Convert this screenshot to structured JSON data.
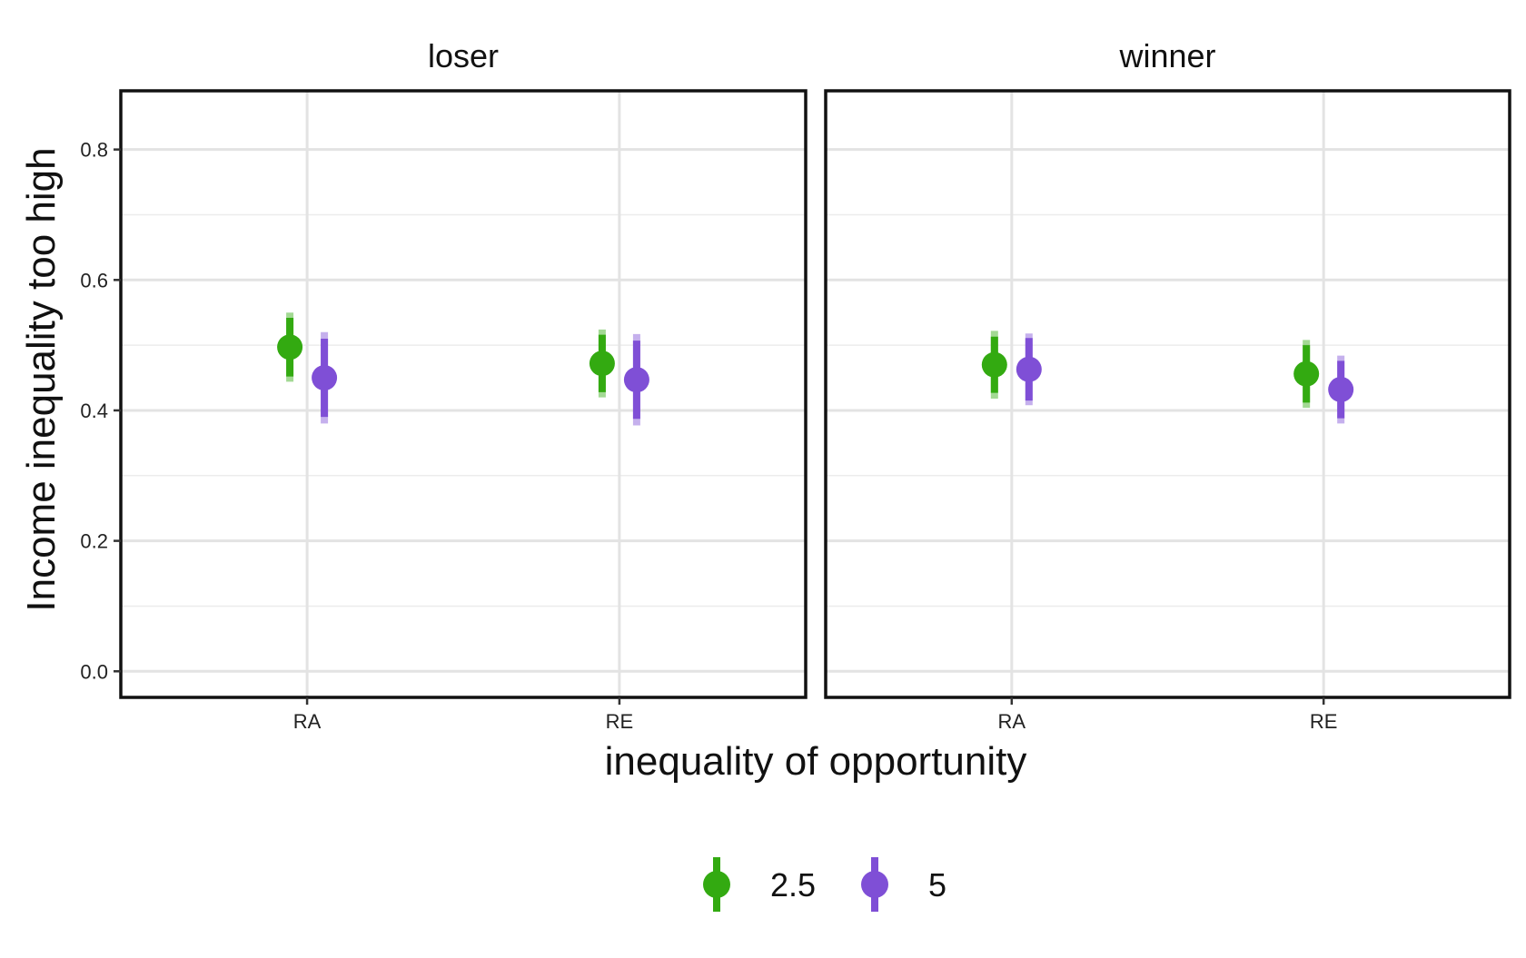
{
  "chart_data": {
    "type": "scatter",
    "subtype": "pointrange",
    "xlabel": "inequality of opportunity",
    "ylabel": "Income inequality too high",
    "ylim": [
      -0.04,
      0.89
    ],
    "yticks": [
      "0.0",
      "0.2",
      "0.4",
      "0.6",
      "0.8"
    ],
    "ytick_values": [
      0.0,
      0.2,
      0.4,
      0.6,
      0.8
    ],
    "categories": [
      "RA",
      "RE"
    ],
    "grid": true,
    "legend_position": "bottom",
    "colors": {
      "2.5": "#33aa11",
      "5": "#7f4fd6"
    },
    "series": [
      {
        "name": "2.5",
        "color": "#33aa11"
      },
      {
        "name": "5",
        "color": "#7f4fd6"
      }
    ],
    "panels": [
      {
        "title": "loser",
        "points": [
          {
            "category": "RA",
            "series": "2.5",
            "y": 0.497,
            "inner": [
              0.452,
              0.542
            ],
            "outer": [
              0.444,
              0.55
            ]
          },
          {
            "category": "RA",
            "series": "5",
            "y": 0.45,
            "inner": [
              0.39,
              0.51
            ],
            "outer": [
              0.38,
              0.52
            ]
          },
          {
            "category": "RE",
            "series": "2.5",
            "y": 0.472,
            "inner": [
              0.428,
              0.516
            ],
            "outer": [
              0.42,
              0.524
            ]
          },
          {
            "category": "RE",
            "series": "5",
            "y": 0.447,
            "inner": [
              0.387,
              0.507
            ],
            "outer": [
              0.377,
              0.517
            ]
          }
        ]
      },
      {
        "title": "winner",
        "points": [
          {
            "category": "RA",
            "series": "2.5",
            "y": 0.47,
            "inner": [
              0.427,
              0.513
            ],
            "outer": [
              0.418,
              0.522
            ]
          },
          {
            "category": "RA",
            "series": "5",
            "y": 0.463,
            "inner": [
              0.415,
              0.511
            ],
            "outer": [
              0.408,
              0.518
            ]
          },
          {
            "category": "RE",
            "series": "2.5",
            "y": 0.456,
            "inner": [
              0.412,
              0.5
            ],
            "outer": [
              0.404,
              0.508
            ]
          },
          {
            "category": "RE",
            "series": "5",
            "y": 0.432,
            "inner": [
              0.388,
              0.476
            ],
            "outer": [
              0.38,
              0.484
            ]
          }
        ]
      }
    ]
  },
  "legend": {
    "items": [
      {
        "label": "2.5",
        "color": "#33aa11"
      },
      {
        "label": "5",
        "color": "#7f4fd6"
      }
    ]
  }
}
